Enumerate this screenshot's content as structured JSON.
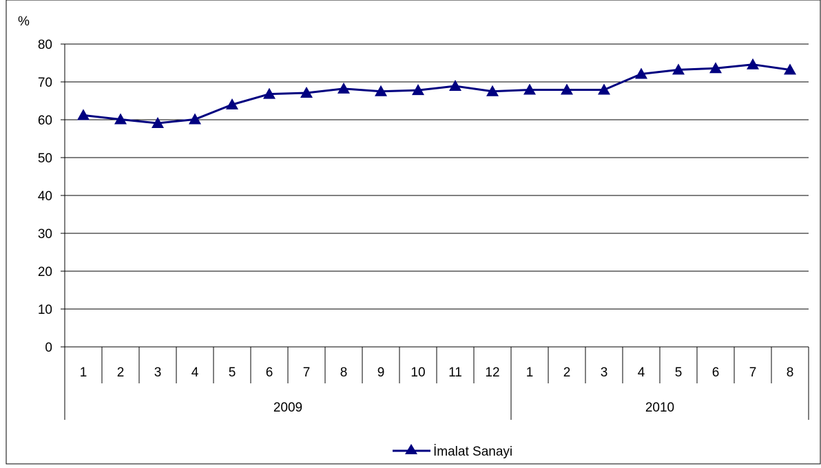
{
  "chart_data": {
    "type": "line",
    "ylabel": "%",
    "ylim": [
      0,
      80
    ],
    "yticks": [
      "0",
      "10",
      "20",
      "30",
      "40",
      "50",
      "60",
      "70",
      "80"
    ],
    "categories": [
      "1",
      "2",
      "3",
      "4",
      "5",
      "6",
      "7",
      "8",
      "9",
      "10",
      "11",
      "12",
      "1",
      "2",
      "3",
      "4",
      "5",
      "6",
      "7",
      "8"
    ],
    "groups": [
      {
        "label": "2009",
        "count": 12
      },
      {
        "label": "2010",
        "count": 8
      }
    ],
    "series": [
      {
        "name": "İmalat Sanayi",
        "color": "#000080",
        "marker": "triangle",
        "values": [
          61.2,
          60.1,
          59.1,
          60.1,
          64.0,
          66.8,
          67.1,
          68.2,
          67.5,
          67.8,
          68.9,
          67.5,
          67.9,
          67.9,
          67.9,
          72.1,
          73.2,
          73.6,
          74.6,
          73.2
        ]
      }
    ],
    "grid": true,
    "legend_position": "bottom-center"
  }
}
